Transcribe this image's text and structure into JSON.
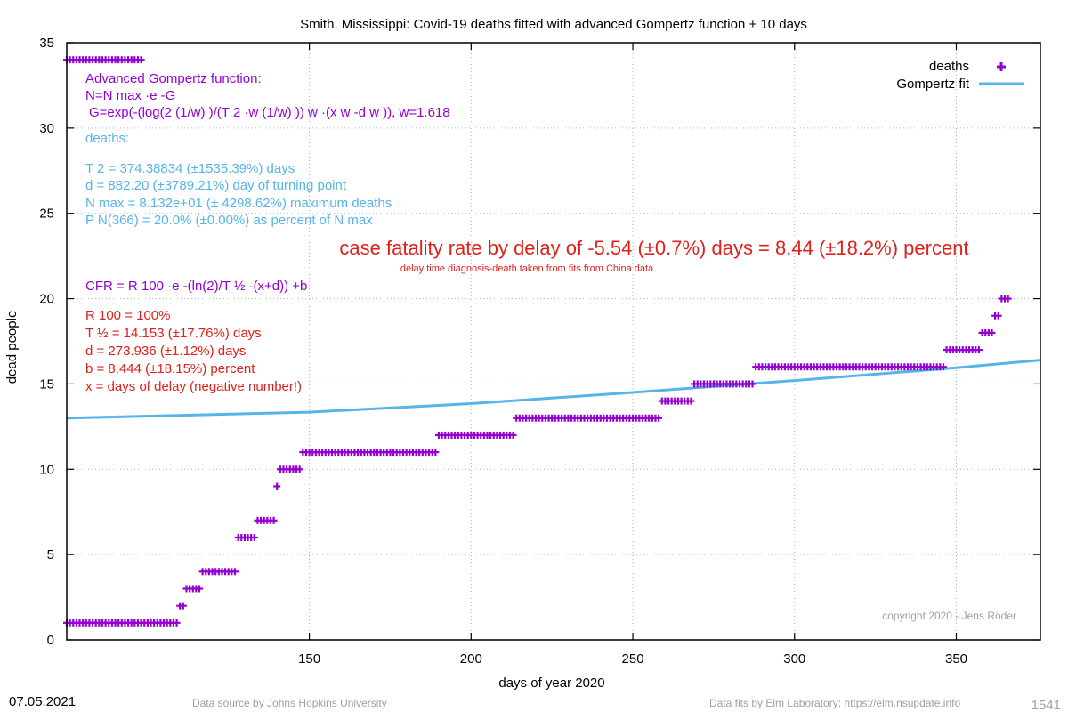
{
  "chart_data": {
    "type": "scatter",
    "title": "Smith,  Mississippi: Covid-19 deaths fitted with advanced Gompertz function + 10 days",
    "xlabel": "days of year 2020",
    "ylabel": "dead people",
    "xlim": [
      75,
      376
    ],
    "ylim": [
      0,
      35
    ],
    "x_ticks": [
      150,
      200,
      250,
      300,
      350
    ],
    "y_ticks": [
      0,
      5,
      10,
      15,
      20,
      25,
      30,
      35
    ],
    "grid": true,
    "legend_position": "top-right",
    "legend": [
      {
        "label": "deaths",
        "color": "#9400d3",
        "marker": "plus"
      },
      {
        "label": "Gompertz fit",
        "color": "#56b4e9",
        "marker": "line"
      }
    ],
    "series": [
      {
        "name": "deaths",
        "color": "#9400d3",
        "segments": [
          {
            "x_start": 75,
            "x_end": 98,
            "y": 34
          },
          {
            "x_start": 75,
            "x_end": 109,
            "y": 1
          },
          {
            "x_start": 110,
            "x_end": 111,
            "y": 2
          },
          {
            "x_start": 112,
            "x_end": 116,
            "y": 3
          },
          {
            "x_start": 117,
            "x_end": 127,
            "y": 4
          },
          {
            "x_start": 128,
            "x_end": 133,
            "y": 6
          },
          {
            "x_start": 134,
            "x_end": 139,
            "y": 7
          },
          {
            "x_start": 140,
            "x_end": 140,
            "y": 9
          },
          {
            "x_start": 141,
            "x_end": 147,
            "y": 10
          },
          {
            "x_start": 148,
            "x_end": 189,
            "y": 11
          },
          {
            "x_start": 190,
            "x_end": 213,
            "y": 12
          },
          {
            "x_start": 214,
            "x_end": 258,
            "y": 13
          },
          {
            "x_start": 259,
            "x_end": 268,
            "y": 14
          },
          {
            "x_start": 269,
            "x_end": 287,
            "y": 15
          },
          {
            "x_start": 288,
            "x_end": 346,
            "y": 16
          },
          {
            "x_start": 347,
            "x_end": 357,
            "y": 17
          },
          {
            "x_start": 358,
            "x_end": 361,
            "y": 18
          },
          {
            "x_start": 362,
            "x_end": 363,
            "y": 19
          },
          {
            "x_start": 364,
            "x_end": 366,
            "y": 20
          }
        ]
      },
      {
        "name": "Gompertz fit",
        "color": "#56b4e9",
        "x": [
          75,
          150,
          200,
          250,
          300,
          350,
          376
        ],
        "y": [
          13.0,
          13.35,
          13.85,
          14.5,
          15.2,
          15.95,
          16.4
        ]
      }
    ],
    "annotations": {
      "gompertz_box": {
        "heading": "Advanced Gompertz function:",
        "formula_n": "N=N max ·e -G",
        "formula_g": "G=exp(-(log(2 (1/w) )/(T 2 ·w (1/w) )) w ·(x w -d w )), w=1.618"
      },
      "deaths_box": {
        "heading": "deaths:",
        "t2": "T 2 = 374.38834 (±1535.39%) days",
        "d": "d = 882.20 (±3789.21%) day of turning point",
        "nmax": "N max  = 8.132e+01 (± 4298.62%) maximum deaths",
        "pn": "P N(366)  = 20.0% (±0.00%) as percent of N max"
      },
      "cfr_headline": "case fatality rate by delay of -5.54 (±0.7%) days = 8.44 (±18.2%) percent",
      "cfr_note": "delay time diagnosis-death taken from fits from China data",
      "cfr_formula": "CFR = R 100 ·e -(ln(2)/T ½  ·(x+d)) +b",
      "cfr_box": {
        "r100": "R 100  = 100%",
        "thalf": "T ½  = 14.153 (±17.76%) days",
        "d": "d = 273.936 (±1.12%) days",
        "b": "b = 8.444 (±18.15%) percent",
        "x": "x = days of delay (negative number!)"
      },
      "copyright": "copyright 2020 - Jens Röder"
    },
    "colors": {
      "purple": "#9400d3",
      "blue": "#56b4e9",
      "red": "#e0201b",
      "grid": "#b0b0b0"
    }
  },
  "footer": {
    "date": "07.05.2021",
    "source": "Data source by Johns Hopkins University",
    "fits": "Data fits by Elm Laboratory: https://elm.nsupdate.info",
    "page_id": "1541"
  }
}
